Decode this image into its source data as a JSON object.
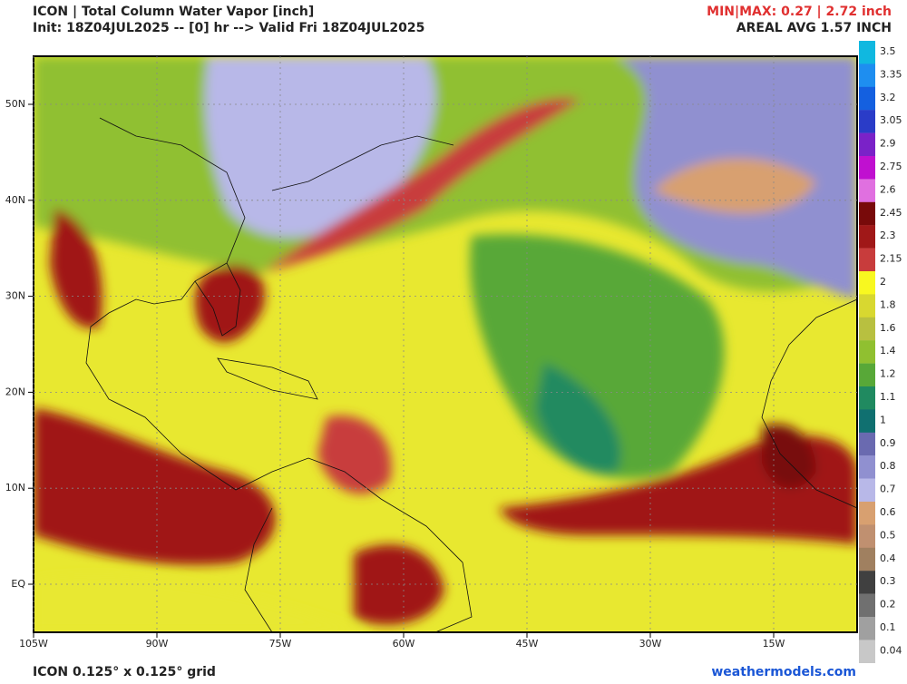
{
  "header": {
    "title": "ICON | Total Column Water Vapor [inch]",
    "subtitle": "Init: 18Z04JUL2025 -- [0] hr --> Valid Fri 18Z04JUL2025",
    "minmax": "MIN|MAX: 0.27 | 2.72 inch",
    "average": "AREAL AVG 1.57 INCH"
  },
  "map": {
    "lat_labels": [
      "50N",
      "40N",
      "30N",
      "20N",
      "10N",
      "EQ"
    ],
    "lon_labels": [
      "105W",
      "90W",
      "75W",
      "60W",
      "45W",
      "30W",
      "15W"
    ]
  },
  "colorbar": [
    {
      "label": "3.5",
      "color": "#10b8e0"
    },
    {
      "label": "3.35",
      "color": "#1e8ef0"
    },
    {
      "label": "3.2",
      "color": "#1460e0"
    },
    {
      "label": "3.05",
      "color": "#2a3cc8"
    },
    {
      "label": "2.9",
      "color": "#7a22c8"
    },
    {
      "label": "2.75",
      "color": "#c010d0"
    },
    {
      "label": "2.6",
      "color": "#e070e0"
    },
    {
      "label": "2.45",
      "color": "#780a0a"
    },
    {
      "label": "2.3",
      "color": "#a01818"
    },
    {
      "label": "2.15",
      "color": "#c83c3c"
    },
    {
      "label": "2",
      "color": "#f8f820"
    },
    {
      "label": "1.8",
      "color": "#d8d830"
    },
    {
      "label": "1.6",
      "color": "#b8c040"
    },
    {
      "label": "1.4",
      "color": "#90c030"
    },
    {
      "label": "1.2",
      "color": "#58a838"
    },
    {
      "label": "1.1",
      "color": "#208a60"
    },
    {
      "label": "1",
      "color": "#107070"
    },
    {
      "label": "0.9",
      "color": "#6a6ab0"
    },
    {
      "label": "0.8",
      "color": "#9090d0"
    },
    {
      "label": "0.7",
      "color": "#b8b8e8"
    },
    {
      "label": "0.6",
      "color": "#d8a070"
    },
    {
      "label": "0.5",
      "color": "#c09070"
    },
    {
      "label": "0.4",
      "color": "#a08060"
    },
    {
      "label": "0.3",
      "color": "#404040"
    },
    {
      "label": "0.2",
      "color": "#707070"
    },
    {
      "label": "0.1",
      "color": "#a0a0a0"
    },
    {
      "label": "0.04",
      "color": "#c8c8c8"
    }
  ],
  "footer": {
    "grid": "ICON 0.125° x 0.125° grid",
    "source": "weathermodels.com"
  }
}
